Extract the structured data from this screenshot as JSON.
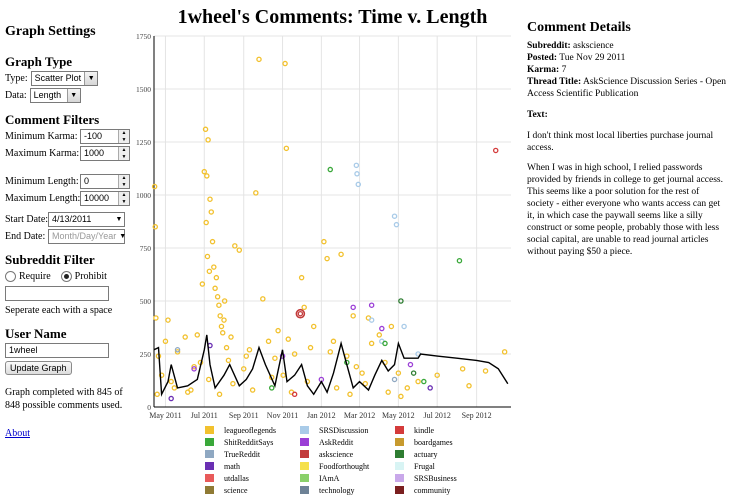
{
  "sidebar": {
    "heading": "Graph Settings",
    "graph_type": {
      "heading": "Graph Type",
      "type_label": "Type:",
      "type_value": "Scatter Plot",
      "data_label": "Data:",
      "data_value": "Length"
    },
    "filters": {
      "heading": "Comment Filters",
      "min_karma_label": "Minimum Karma:",
      "min_karma": "-100",
      "max_karma_label": "Maximum Karma:",
      "max_karma": "1000",
      "min_length_label": "Minimum Length:",
      "min_length": "0",
      "max_length_label": "Maximum Length:",
      "max_length": "10000",
      "start_label": "Start Date:",
      "start_date": "4/13/2011",
      "end_label": "End Date:",
      "end_placeholder": "Month/Day/Year"
    },
    "subreddit": {
      "heading": "Subreddit Filter",
      "require": "Require",
      "prohibit": "Prohibit",
      "hint": "Seperate each with a space"
    },
    "user": {
      "heading": "User Name",
      "username": "1wheel",
      "update_button": "Update Graph"
    },
    "status": "Graph completed with 845 of 848 possible comments used.",
    "about": "About"
  },
  "title": "1wheel's Comments: Time v. Length",
  "chart_data": {
    "type": "scatter",
    "title": "1wheel's Comments: Time v. Length",
    "ylim": [
      0,
      1750
    ],
    "y_ticks": [
      "0",
      "250",
      "500",
      "750",
      "1000",
      "1250",
      "1500",
      "1750"
    ],
    "x_ticks": [
      "May 2011",
      "Jul 2011",
      "Sep 2011",
      "Nov 2011",
      "Jan 2012",
      "Mar 2012",
      "May 2012",
      "Jul 2012",
      "Sep 2012"
    ],
    "legend": [
      {
        "name": "leagueoflegends",
        "color": "#f2c12e"
      },
      {
        "name": "SRSDiscussion",
        "color": "#a9cbe8"
      },
      {
        "name": "kindle",
        "color": "#d43b3b"
      },
      {
        "name": "ShitRedditSays",
        "color": "#3aa83a"
      },
      {
        "name": "AskReddit",
        "color": "#9b3fd6"
      },
      {
        "name": "boardgames",
        "color": "#c79a2e"
      },
      {
        "name": "TrueReddit",
        "color": "#8fa8c2"
      },
      {
        "name": "askscience",
        "color": "#c23b3b"
      },
      {
        "name": "actuary",
        "color": "#2e7d32"
      },
      {
        "name": "math",
        "color": "#6a2fb3"
      },
      {
        "name": "Foodforthought",
        "color": "#f5e04a"
      },
      {
        "name": "Frugal",
        "color": "#d8f4f4"
      },
      {
        "name": "utdallas",
        "color": "#e85a5a"
      },
      {
        "name": "IAmA",
        "color": "#8ad06a"
      },
      {
        "name": "SRSBusiness",
        "color": "#c9a8ea"
      },
      {
        "name": "science",
        "color": "#8f7a34"
      },
      {
        "name": "technology",
        "color": "#6e8296"
      },
      {
        "name": "community",
        "color": "#7a1f1f"
      }
    ],
    "point_series": [
      {
        "subreddit": "leagueoflegends",
        "color": "#f2c12e",
        "points": [
          [
            "2011-04-14",
            1040
          ],
          [
            "2011-04-15",
            850
          ],
          [
            "2011-04-16",
            420
          ],
          [
            "2011-04-20",
            240
          ],
          [
            "2011-04-25",
            150
          ],
          [
            "2011-05-01",
            310
          ],
          [
            "2011-05-05",
            410
          ],
          [
            "2011-05-10",
            120
          ],
          [
            "2011-05-20",
            260
          ],
          [
            "2011-06-01",
            330
          ],
          [
            "2011-06-10",
            80
          ],
          [
            "2011-06-15",
            190
          ],
          [
            "2011-06-20",
            340
          ],
          [
            "2011-06-25",
            210
          ],
          [
            "2011-07-01",
            1110
          ],
          [
            "2011-07-03",
            1310
          ],
          [
            "2011-07-05",
            1090
          ],
          [
            "2011-07-07",
            1260
          ],
          [
            "2011-07-10",
            980
          ],
          [
            "2011-07-12",
            920
          ],
          [
            "2011-07-14",
            780
          ],
          [
            "2011-07-16",
            660
          ],
          [
            "2011-07-18",
            560
          ],
          [
            "2011-07-20",
            610
          ],
          [
            "2011-07-22",
            520
          ],
          [
            "2011-07-24",
            480
          ],
          [
            "2011-07-26",
            430
          ],
          [
            "2011-07-28",
            380
          ],
          [
            "2011-07-30",
            350
          ],
          [
            "2011-08-02",
            500
          ],
          [
            "2011-08-05",
            280
          ],
          [
            "2011-08-08",
            220
          ],
          [
            "2011-08-12",
            330
          ],
          [
            "2011-08-18",
            760
          ],
          [
            "2011-08-25",
            740
          ],
          [
            "2011-09-01",
            180
          ],
          [
            "2011-09-05",
            240
          ],
          [
            "2011-09-10",
            270
          ],
          [
            "2011-09-20",
            1010
          ],
          [
            "2011-09-25",
            1640
          ],
          [
            "2011-10-01",
            510
          ],
          [
            "2011-10-10",
            310
          ],
          [
            "2011-10-20",
            230
          ],
          [
            "2011-10-25",
            360
          ],
          [
            "2011-11-02",
            150
          ],
          [
            "2011-11-05",
            1620
          ],
          [
            "2011-11-07",
            1220
          ],
          [
            "2011-11-10",
            320
          ],
          [
            "2011-11-20",
            250
          ],
          [
            "2011-12-01",
            610
          ],
          [
            "2011-12-05",
            470
          ],
          [
            "2011-12-15",
            280
          ],
          [
            "2011-12-20",
            380
          ],
          [
            "2012-01-05",
            780
          ],
          [
            "2012-01-10",
            700
          ],
          [
            "2012-01-15",
            260
          ],
          [
            "2012-01-20",
            310
          ],
          [
            "2012-02-01",
            720
          ],
          [
            "2012-02-10",
            240
          ],
          [
            "2012-02-20",
            430
          ],
          [
            "2012-02-25",
            190
          ],
          [
            "2012-03-05",
            160
          ],
          [
            "2012-03-15",
            420
          ],
          [
            "2012-03-20",
            300
          ],
          [
            "2012-04-01",
            340
          ],
          [
            "2012-04-10",
            210
          ],
          [
            "2012-04-20",
            380
          ],
          [
            "2012-05-01",
            160
          ],
          [
            "2012-05-15",
            90
          ],
          [
            "2012-06-01",
            120
          ],
          [
            "2012-07-01",
            150
          ],
          [
            "2012-08-10",
            180
          ],
          [
            "2012-08-20",
            100
          ],
          [
            "2012-09-15",
            170
          ],
          [
            "2012-10-15",
            260
          ],
          [
            "2011-04-18",
            60
          ],
          [
            "2011-05-15",
            90
          ],
          [
            "2011-06-05",
            70
          ],
          [
            "2011-07-08",
            130
          ],
          [
            "2011-07-25",
            60
          ],
          [
            "2011-08-15",
            110
          ],
          [
            "2011-09-15",
            80
          ],
          [
            "2011-10-15",
            140
          ],
          [
            "2011-11-15",
            70
          ],
          [
            "2011-12-10",
            120
          ],
          [
            "2012-01-25",
            90
          ],
          [
            "2012-02-15",
            60
          ],
          [
            "2012-03-10",
            110
          ],
          [
            "2012-04-15",
            70
          ],
          [
            "2012-05-05",
            50
          ],
          [
            "2011-07-04",
            870
          ],
          [
            "2011-07-06",
            710
          ],
          [
            "2011-07-09",
            640
          ],
          [
            "2011-06-28",
            580
          ],
          [
            "2011-08-01",
            410
          ]
        ]
      },
      {
        "subreddit": "SRSDiscussion",
        "color": "#a9cbe8",
        "points": [
          [
            "2012-02-25",
            1140
          ],
          [
            "2012-02-26",
            1100
          ],
          [
            "2012-02-28",
            1050
          ],
          [
            "2012-04-25",
            900
          ],
          [
            "2012-04-28",
            860
          ],
          [
            "2012-03-20",
            410
          ],
          [
            "2012-05-10",
            380
          ],
          [
            "2012-06-01",
            250
          ],
          [
            "2012-04-05",
            310
          ]
        ]
      },
      {
        "subreddit": "kindle",
        "color": "#d43b3b",
        "points": [
          [
            "2012-10-01",
            1210
          ],
          [
            "2011-11-20",
            60
          ]
        ]
      },
      {
        "subreddit": "ShitRedditSays",
        "color": "#3aa83a",
        "points": [
          [
            "2012-01-15",
            1120
          ],
          [
            "2012-08-05",
            690
          ],
          [
            "2012-04-10",
            300
          ],
          [
            "2012-06-10",
            120
          ],
          [
            "2011-10-15",
            90
          ],
          [
            "2012-02-10",
            210
          ]
        ]
      },
      {
        "subreddit": "AskReddit",
        "color": "#9b3fd6",
        "points": [
          [
            "2012-02-20",
            470
          ],
          [
            "2012-03-20",
            480
          ],
          [
            "2011-06-15",
            180
          ],
          [
            "2011-11-01",
            240
          ],
          [
            "2012-05-20",
            200
          ],
          [
            "2012-04-05",
            370
          ],
          [
            "2012-01-01",
            130
          ]
        ]
      },
      {
        "subreddit": "askscience",
        "color": "#c23b3b",
        "points": [
          [
            "2011-11-29",
            440
          ]
        ]
      },
      {
        "subreddit": "actuary",
        "color": "#2e7d32",
        "points": [
          [
            "2012-05-05",
            500
          ],
          [
            "2012-05-25",
            160
          ]
        ]
      },
      {
        "subreddit": "math",
        "color": "#6a2fb3",
        "points": [
          [
            "2011-07-10",
            290
          ],
          [
            "2012-06-20",
            90
          ],
          [
            "2011-05-10",
            40
          ]
        ]
      },
      {
        "subreddit": "TrueReddit",
        "color": "#8fa8c2",
        "points": [
          [
            "2011-05-20",
            270
          ],
          [
            "2012-04-25",
            130
          ]
        ]
      }
    ],
    "line": {
      "label": "average length",
      "points": [
        [
          "2011-04-13",
          270
        ],
        [
          "2011-04-20",
          280
        ],
        [
          "2011-04-25",
          60
        ],
        [
          "2011-05-05",
          120
        ],
        [
          "2011-05-10",
          200
        ],
        [
          "2011-05-20",
          90
        ],
        [
          "2011-06-05",
          100
        ],
        [
          "2011-06-20",
          130
        ],
        [
          "2011-07-01",
          270
        ],
        [
          "2011-07-05",
          340
        ],
        [
          "2011-07-10",
          200
        ],
        [
          "2011-07-18",
          90
        ],
        [
          "2011-08-01",
          150
        ],
        [
          "2011-08-10",
          200
        ],
        [
          "2011-08-25",
          100
        ],
        [
          "2011-09-05",
          130
        ],
        [
          "2011-09-15",
          180
        ],
        [
          "2011-09-25",
          280
        ],
        [
          "2011-10-05",
          200
        ],
        [
          "2011-10-20",
          100
        ],
        [
          "2011-11-01",
          270
        ],
        [
          "2011-11-08",
          120
        ],
        [
          "2011-11-20",
          150
        ],
        [
          "2011-12-01",
          200
        ],
        [
          "2011-12-10",
          100
        ],
        [
          "2011-12-20",
          60
        ],
        [
          "2012-01-01",
          120
        ],
        [
          "2012-01-10",
          70
        ],
        [
          "2012-01-20",
          160
        ],
        [
          "2012-02-01",
          300
        ],
        [
          "2012-02-10",
          200
        ],
        [
          "2012-02-20",
          90
        ],
        [
          "2012-03-01",
          120
        ],
        [
          "2012-03-15",
          80
        ],
        [
          "2012-03-25",
          150
        ],
        [
          "2012-04-05",
          220
        ],
        [
          "2012-04-15",
          170
        ],
        [
          "2012-04-25",
          200
        ],
        [
          "2012-05-01",
          300
        ],
        [
          "2012-05-10",
          230
        ],
        [
          "2012-06-01",
          230
        ],
        [
          "2012-06-05",
          250
        ],
        [
          "2012-07-01",
          240
        ],
        [
          "2012-08-01",
          230
        ],
        [
          "2012-09-01",
          220
        ],
        [
          "2012-09-20",
          210
        ],
        [
          "2012-10-05",
          180
        ],
        [
          "2012-10-20",
          110
        ]
      ]
    }
  },
  "details": {
    "heading": "Comment Details",
    "subreddit_label": "Subreddit:",
    "subreddit": "askscience",
    "posted_label": "Posted:",
    "posted": "Tue Nov 29 2011",
    "karma_label": "Karma:",
    "karma": "7",
    "thread_label": "Thread Title:",
    "thread": "AskScience Discussion Series - Open Access Scientific Publication",
    "text_label": "Text:",
    "paragraphs": [
      "I don't think most local liberties purchase journal access.",
      "When I was in high school, I relied passwords provided by friends in college to get journal access. This seems like a poor solution for the rest of society - either everyone who wants access can get it, in which case the paywall seems like a silly construct or some people, probably those with less social capital, are unable to read journal articles without paying $50 a piece."
    ]
  }
}
